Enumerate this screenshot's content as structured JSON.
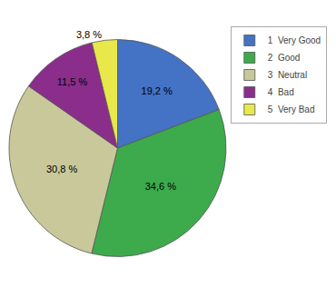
{
  "chart_data": {
    "type": "pie",
    "categories": [
      "1  Very Good",
      "2  Good",
      "3  Neutral",
      "4  Bad",
      "5  Very Bad"
    ],
    "values": [
      19.2,
      34.6,
      30.8,
      11.5,
      3.8
    ],
    "value_labels": [
      "19,2 %",
      "34,6 %",
      "30,8 %",
      "11,5 %",
      "3,8 %"
    ],
    "colors": [
      "#4472C4",
      "#3DAA4C",
      "#C8C89A",
      "#8B2D8B",
      "#E8E84A"
    ],
    "data_labels": true,
    "legend": "upper right"
  }
}
